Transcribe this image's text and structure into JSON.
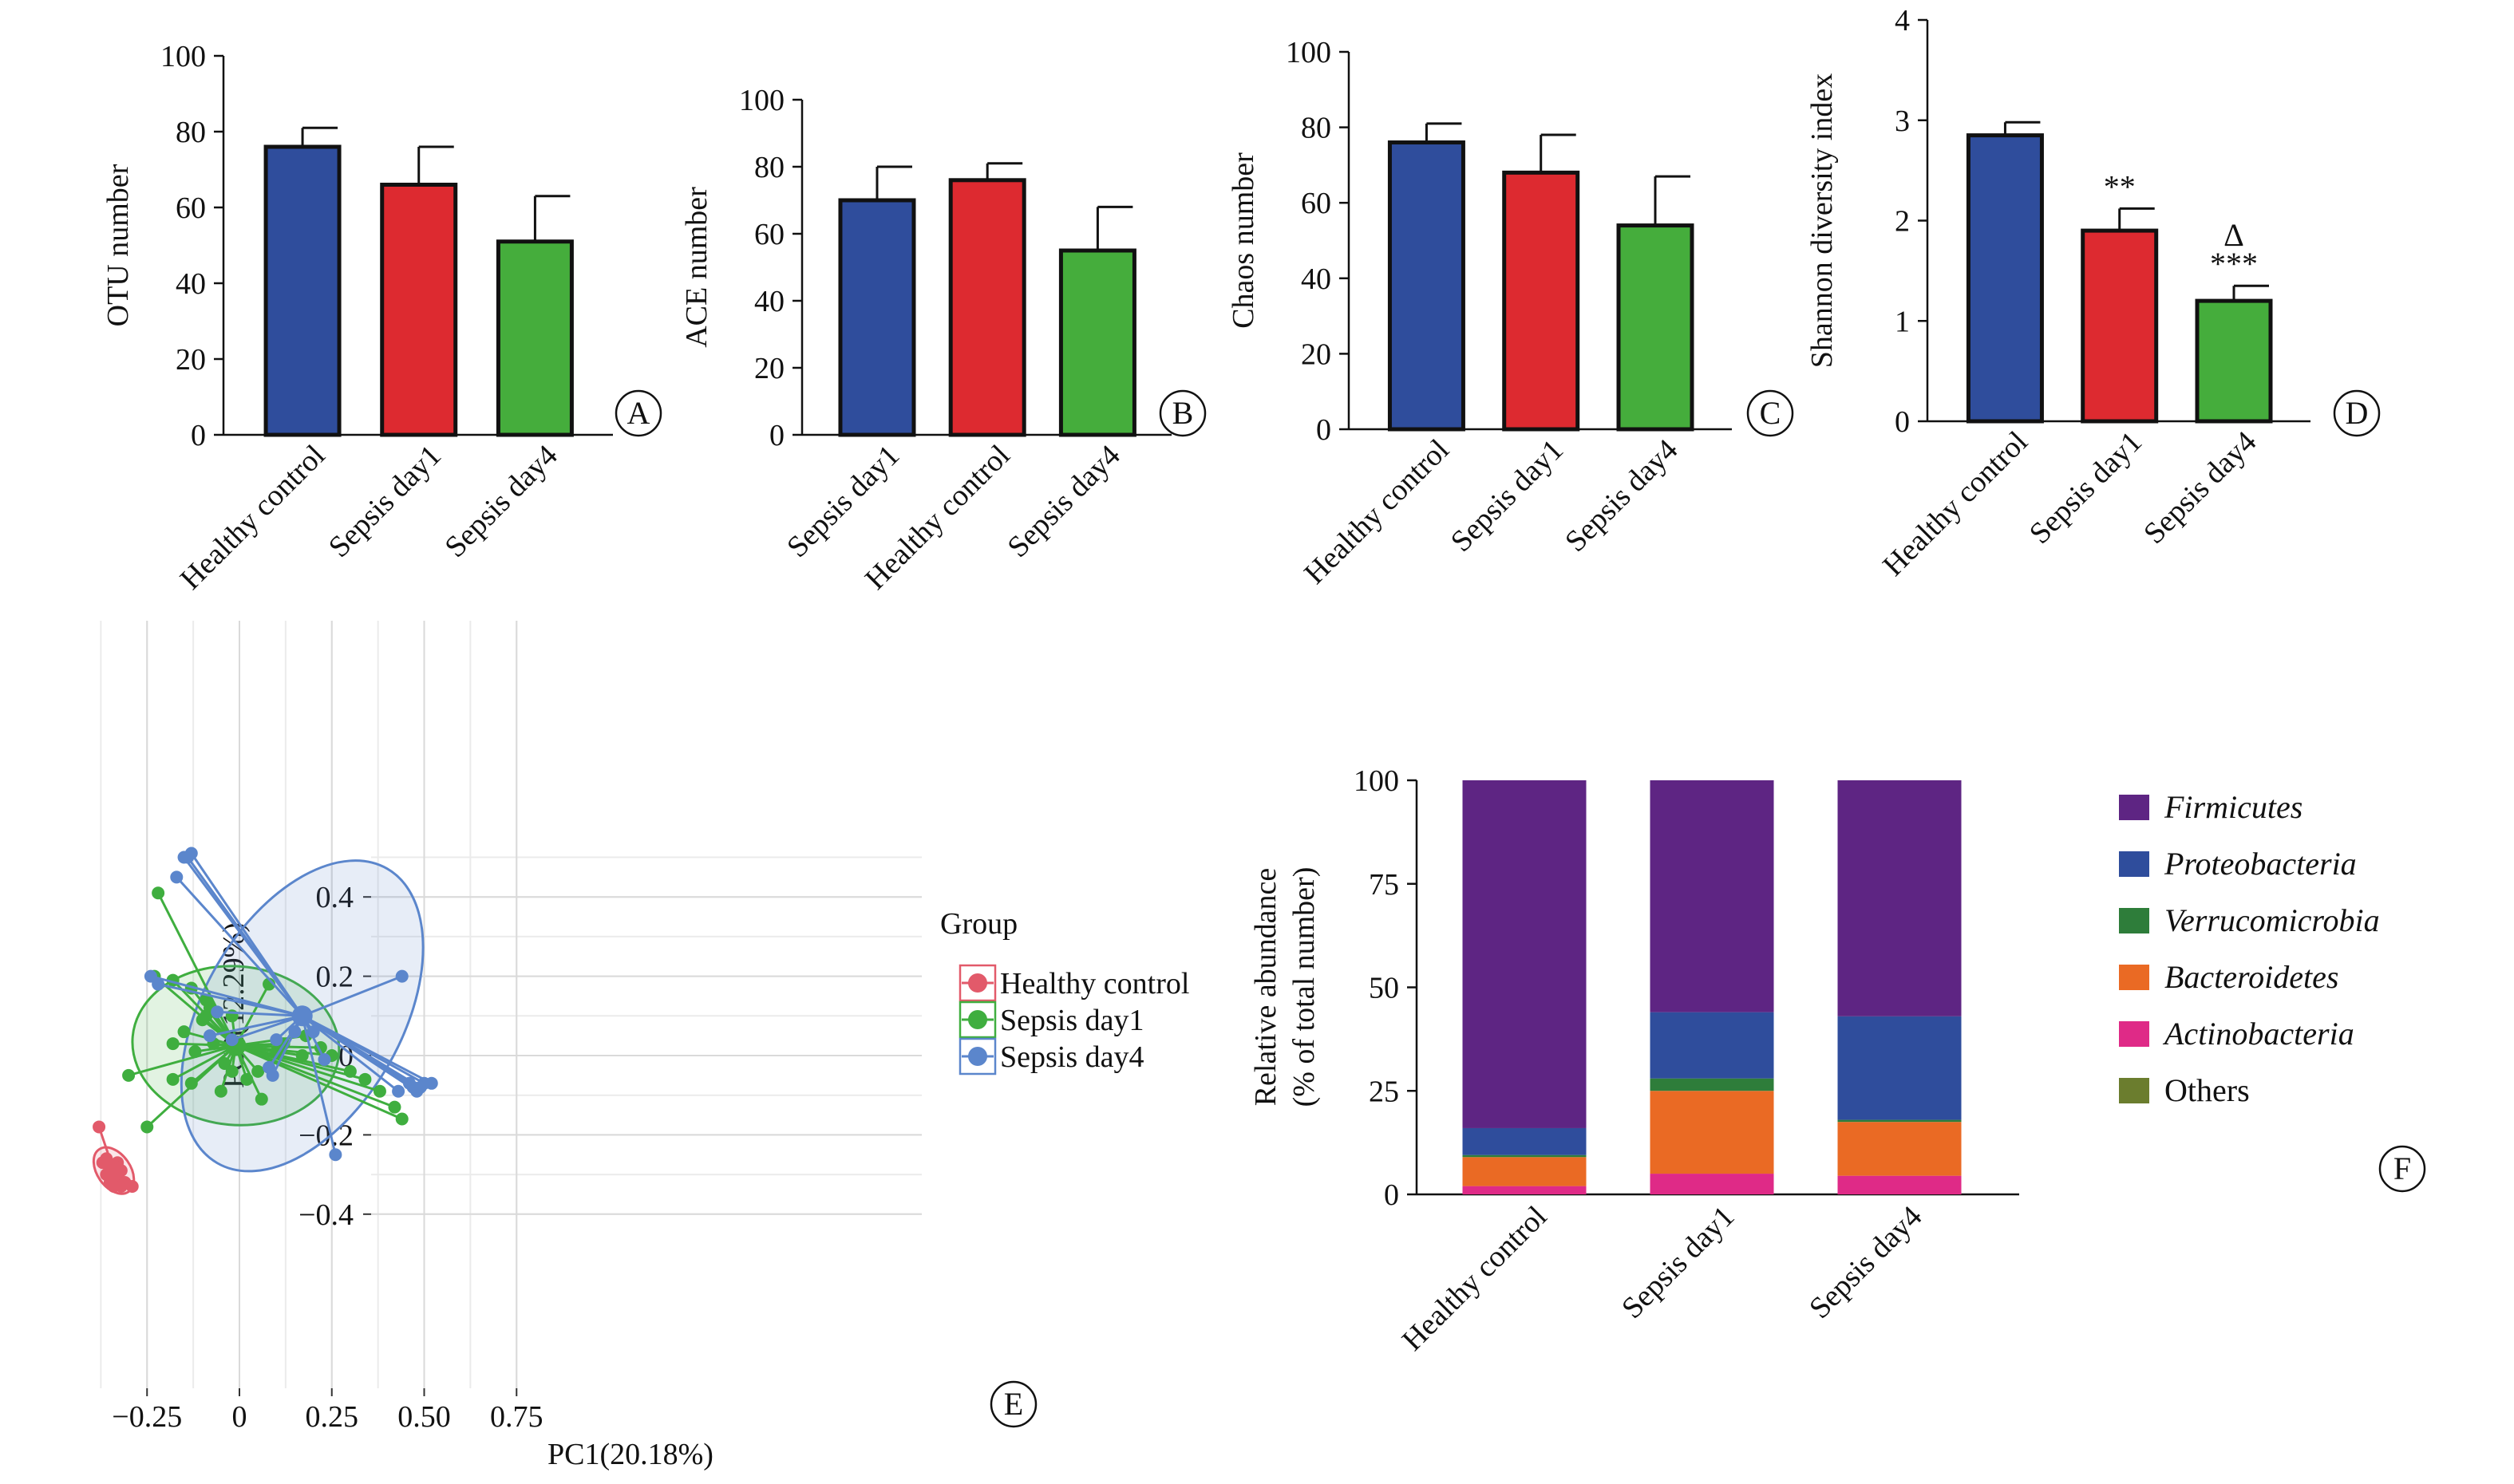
{
  "colors": {
    "blue": "#2f4d9c",
    "red": "#dd2a30",
    "green": "#45ad3c",
    "pc_red": "#e25a6a",
    "pc_green": "#3fae3f",
    "pc_blue": "#5b86cc",
    "firmicutes": "#5e2583",
    "proteobacteria": "#2f4d9c",
    "verrucomicrobia": "#2e7d3a",
    "bacteroidetes": "#ea6a24",
    "actinobacteria": "#df2a87",
    "others": "#6b7d2e"
  },
  "chart_data": [
    {
      "panel": "A",
      "type": "bar",
      "ylabel": "OTU number",
      "ylim": [
        0,
        100
      ],
      "yticks": [
        "0",
        "20",
        "40",
        "60",
        "80",
        "100"
      ],
      "categories": [
        "Healthy control",
        "Sepsis day1",
        "Sepsis day4"
      ],
      "values": [
        76,
        66,
        51
      ],
      "errors": [
        5,
        10,
        12
      ],
      "bar_colors": [
        "blue",
        "red",
        "green"
      ],
      "annotations": [
        "",
        "",
        ""
      ]
    },
    {
      "panel": "B",
      "type": "bar",
      "ylabel": "ACE number",
      "ylim": [
        0,
        100
      ],
      "yticks": [
        "0",
        "20",
        "40",
        "60",
        "80",
        "100"
      ],
      "categories": [
        "Sepsis day1",
        "Healthy control",
        "Sepsis day4"
      ],
      "values": [
        70,
        76,
        55
      ],
      "errors": [
        10,
        5,
        13
      ],
      "bar_colors": [
        "blue",
        "red",
        "green"
      ],
      "annotations": [
        "",
        "",
        ""
      ]
    },
    {
      "panel": "C",
      "type": "bar",
      "ylabel": "Chaos number",
      "ylim": [
        0,
        100
      ],
      "yticks": [
        "0",
        "20",
        "40",
        "60",
        "80",
        "100"
      ],
      "categories": [
        "Healthy control",
        "Sepsis day1",
        "Sepsis day4"
      ],
      "values": [
        76,
        68,
        54
      ],
      "errors": [
        5,
        10,
        13
      ],
      "bar_colors": [
        "blue",
        "red",
        "green"
      ],
      "annotations": [
        "",
        "",
        ""
      ]
    },
    {
      "panel": "D",
      "type": "bar",
      "ylabel": "Shannon diversity index",
      "ylim": [
        0,
        4
      ],
      "yticks": [
        "0",
        "1",
        "2",
        "3",
        "4"
      ],
      "categories": [
        "Healthy control",
        "Sepsis day1",
        "Sepsis day4"
      ],
      "values": [
        2.85,
        1.9,
        1.2
      ],
      "errors": [
        0.13,
        0.22,
        0.15
      ],
      "bar_colors": [
        "blue",
        "red",
        "green"
      ],
      "annotations": [
        "",
        "**",
        "Δ\n***"
      ]
    },
    {
      "panel": "E",
      "type": "scatter",
      "xlabel": "PC1(20.18%)",
      "ylabel": "PC2(12.29%)",
      "xlim": [
        -0.42,
        0.75
      ],
      "ylim": [
        -0.42,
        0.55
      ],
      "xticks": [
        -0.25,
        0,
        0.25,
        0.5,
        0.75
      ],
      "xtick_labels": [
        "−0.25",
        "0",
        "0.25",
        "0.50",
        "0.75"
      ],
      "yticks": [
        -0.4,
        -0.2,
        0,
        0.2,
        0.4
      ],
      "ytick_labels": [
        "−0.4",
        "−0.2",
        "0",
        "0.2",
        "0.4"
      ],
      "grid": true,
      "legend_title": "Group",
      "series": [
        {
          "name": "Healthy control",
          "color": "pc_red",
          "centroid": [
            -0.34,
            -0.29
          ],
          "ellipse": {
            "rx": 0.045,
            "ry": 0.065,
            "angle": 35
          },
          "points": [
            [
              -0.38,
              -0.18
            ],
            [
              -0.37,
              -0.27
            ],
            [
              -0.36,
              -0.26
            ],
            [
              -0.35,
              -0.29
            ],
            [
              -0.34,
              -0.3
            ],
            [
              -0.33,
              -0.31
            ],
            [
              -0.32,
              -0.33
            ],
            [
              -0.31,
              -0.32
            ],
            [
              -0.33,
              -0.27
            ],
            [
              -0.29,
              -0.33
            ],
            [
              -0.34,
              -0.33
            ],
            [
              -0.36,
              -0.3
            ],
            [
              -0.35,
              -0.32
            ],
            [
              -0.32,
              -0.29
            ]
          ]
        },
        {
          "name": "Sepsis day1",
          "color": "pc_green",
          "centroid": [
            -0.01,
            0.025
          ],
          "ellipse": {
            "rx": 0.28,
            "ry": 0.2,
            "angle": -5
          },
          "points": [
            [
              -0.22,
              0.41
            ],
            [
              -0.23,
              0.2
            ],
            [
              -0.18,
              0.19
            ],
            [
              -0.13,
              0.17
            ],
            [
              -0.09,
              0.14
            ],
            [
              -0.08,
              0.12
            ],
            [
              -0.1,
              0.09
            ],
            [
              -0.15,
              0.06
            ],
            [
              -0.02,
              0.1
            ],
            [
              -0.07,
              0.03
            ],
            [
              -0.3,
              -0.05
            ],
            [
              -0.18,
              0.03
            ],
            [
              -0.12,
              0.01
            ],
            [
              -0.04,
              -0.02
            ],
            [
              -0.02,
              -0.04
            ],
            [
              0.02,
              -0.06
            ],
            [
              0.1,
              0.01
            ],
            [
              0.12,
              0.03
            ],
            [
              0.18,
              0.05
            ],
            [
              0.22,
              0.02
            ],
            [
              0.25,
              0.0
            ],
            [
              0.3,
              -0.04
            ],
            [
              0.34,
              -0.06
            ],
            [
              0.38,
              -0.09
            ],
            [
              0.42,
              -0.13
            ],
            [
              0.44,
              -0.16
            ],
            [
              0.05,
              -0.04
            ],
            [
              0.06,
              -0.11
            ],
            [
              -0.05,
              -0.09
            ],
            [
              -0.13,
              -0.07
            ],
            [
              -0.18,
              -0.06
            ],
            [
              -0.25,
              -0.18
            ],
            [
              0.08,
              0.18
            ],
            [
              -0.09,
              0.1
            ],
            [
              0.17,
              0.0
            ]
          ]
        },
        {
          "name": "Sepsis day4",
          "color": "pc_blue",
          "centroid": [
            0.17,
            0.1
          ],
          "ellipse": {
            "rx": 0.46,
            "ry": 0.25,
            "angle": 60
          },
          "points": [
            [
              -0.13,
              0.51
            ],
            [
              -0.14,
              0.5
            ],
            [
              -0.15,
              0.5
            ],
            [
              -0.17,
              0.45
            ],
            [
              -0.24,
              0.2
            ],
            [
              -0.22,
              0.18
            ],
            [
              -0.08,
              0.05
            ],
            [
              -0.02,
              0.04
            ],
            [
              0.08,
              -0.03
            ],
            [
              0.1,
              0.04
            ],
            [
              0.15,
              0.06
            ],
            [
              0.2,
              0.06
            ],
            [
              0.23,
              -0.01
            ],
            [
              0.26,
              -0.25
            ],
            [
              0.44,
              0.2
            ],
            [
              0.46,
              -0.07
            ],
            [
              0.47,
              -0.08
            ],
            [
              0.48,
              -0.09
            ],
            [
              0.49,
              -0.08
            ],
            [
              0.5,
              -0.07
            ],
            [
              0.52,
              -0.07
            ],
            [
              0.43,
              -0.09
            ],
            [
              -0.06,
              0.11
            ],
            [
              0.09,
              -0.05
            ]
          ]
        }
      ]
    },
    {
      "panel": "F",
      "type": "bar",
      "stacked": true,
      "ylabel": "Relative abundance",
      "ylabel2": "(% of total number)",
      "ylim": [
        0,
        100
      ],
      "yticks": [
        "0",
        "25",
        "50",
        "75",
        "100"
      ],
      "categories": [
        "Healthy control",
        "Sepsis day1",
        "Sepsis day4"
      ],
      "series": [
        {
          "name": "Actinobacteria",
          "color": "actinobacteria",
          "italic": true,
          "values": [
            2,
            5,
            4.5
          ]
        },
        {
          "name": "Bacteroidetes",
          "color": "bacteroidetes",
          "italic": true,
          "values": [
            7,
            20,
            13
          ]
        },
        {
          "name": "Verrucomicrobia",
          "color": "verrucomicrobia",
          "italic": true,
          "values": [
            0.5,
            3,
            0.5
          ]
        },
        {
          "name": "Proteobacteria",
          "color": "proteobacteria",
          "italic": true,
          "values": [
            6.5,
            16,
            25
          ]
        },
        {
          "name": "Others",
          "color": "others",
          "italic": false,
          "values": [
            0,
            0,
            0
          ]
        },
        {
          "name": "Firmicutes",
          "color": "firmicutes",
          "italic": true,
          "values": [
            84,
            56,
            57
          ]
        }
      ],
      "legend_order": [
        "Firmicutes",
        "Proteobacteria",
        "Verrucomicrobia",
        "Bacteroidetes",
        "Actinobacteria",
        "Others"
      ]
    }
  ]
}
